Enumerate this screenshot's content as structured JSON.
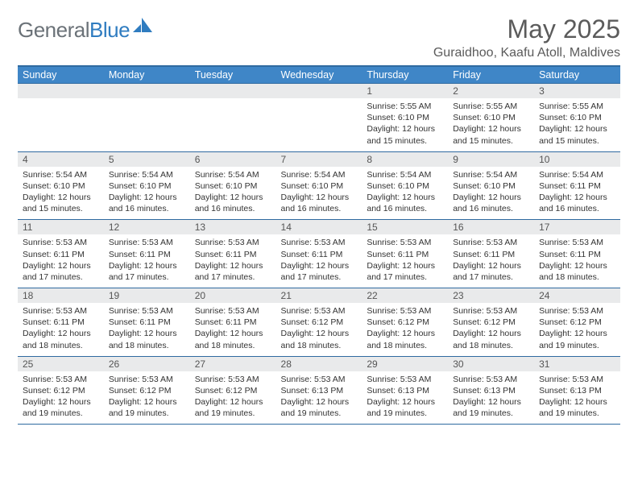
{
  "logo": {
    "word1": "General",
    "word2": "Blue",
    "word1_color": "#6b7278",
    "word2_color": "#2f7cc0"
  },
  "title": "May 2025",
  "location": "Guraidhoo, Kaafu Atoll, Maldives",
  "colors": {
    "header_bg": "#3f86c7",
    "header_text": "#ffffff",
    "rule": "#2f6aa0",
    "daynum_bg": "#e9eaeb",
    "page_bg": "#ffffff"
  },
  "dayNames": [
    "Sunday",
    "Monday",
    "Tuesday",
    "Wednesday",
    "Thursday",
    "Friday",
    "Saturday"
  ],
  "labels": {
    "sunrise": "Sunrise: ",
    "sunset": "Sunset: ",
    "daylight": "Daylight: "
  },
  "weeks": [
    [
      null,
      null,
      null,
      null,
      {
        "n": "1",
        "sr": "5:55 AM",
        "ss": "6:10 PM",
        "dl": "12 hours and 15 minutes."
      },
      {
        "n": "2",
        "sr": "5:55 AM",
        "ss": "6:10 PM",
        "dl": "12 hours and 15 minutes."
      },
      {
        "n": "3",
        "sr": "5:55 AM",
        "ss": "6:10 PM",
        "dl": "12 hours and 15 minutes."
      }
    ],
    [
      {
        "n": "4",
        "sr": "5:54 AM",
        "ss": "6:10 PM",
        "dl": "12 hours and 15 minutes."
      },
      {
        "n": "5",
        "sr": "5:54 AM",
        "ss": "6:10 PM",
        "dl": "12 hours and 16 minutes."
      },
      {
        "n": "6",
        "sr": "5:54 AM",
        "ss": "6:10 PM",
        "dl": "12 hours and 16 minutes."
      },
      {
        "n": "7",
        "sr": "5:54 AM",
        "ss": "6:10 PM",
        "dl": "12 hours and 16 minutes."
      },
      {
        "n": "8",
        "sr": "5:54 AM",
        "ss": "6:10 PM",
        "dl": "12 hours and 16 minutes."
      },
      {
        "n": "9",
        "sr": "5:54 AM",
        "ss": "6:10 PM",
        "dl": "12 hours and 16 minutes."
      },
      {
        "n": "10",
        "sr": "5:54 AM",
        "ss": "6:11 PM",
        "dl": "12 hours and 16 minutes."
      }
    ],
    [
      {
        "n": "11",
        "sr": "5:53 AM",
        "ss": "6:11 PM",
        "dl": "12 hours and 17 minutes."
      },
      {
        "n": "12",
        "sr": "5:53 AM",
        "ss": "6:11 PM",
        "dl": "12 hours and 17 minutes."
      },
      {
        "n": "13",
        "sr": "5:53 AM",
        "ss": "6:11 PM",
        "dl": "12 hours and 17 minutes."
      },
      {
        "n": "14",
        "sr": "5:53 AM",
        "ss": "6:11 PM",
        "dl": "12 hours and 17 minutes."
      },
      {
        "n": "15",
        "sr": "5:53 AM",
        "ss": "6:11 PM",
        "dl": "12 hours and 17 minutes."
      },
      {
        "n": "16",
        "sr": "5:53 AM",
        "ss": "6:11 PM",
        "dl": "12 hours and 17 minutes."
      },
      {
        "n": "17",
        "sr": "5:53 AM",
        "ss": "6:11 PM",
        "dl": "12 hours and 18 minutes."
      }
    ],
    [
      {
        "n": "18",
        "sr": "5:53 AM",
        "ss": "6:11 PM",
        "dl": "12 hours and 18 minutes."
      },
      {
        "n": "19",
        "sr": "5:53 AM",
        "ss": "6:11 PM",
        "dl": "12 hours and 18 minutes."
      },
      {
        "n": "20",
        "sr": "5:53 AM",
        "ss": "6:11 PM",
        "dl": "12 hours and 18 minutes."
      },
      {
        "n": "21",
        "sr": "5:53 AM",
        "ss": "6:12 PM",
        "dl": "12 hours and 18 minutes."
      },
      {
        "n": "22",
        "sr": "5:53 AM",
        "ss": "6:12 PM",
        "dl": "12 hours and 18 minutes."
      },
      {
        "n": "23",
        "sr": "5:53 AM",
        "ss": "6:12 PM",
        "dl": "12 hours and 18 minutes."
      },
      {
        "n": "24",
        "sr": "5:53 AM",
        "ss": "6:12 PM",
        "dl": "12 hours and 19 minutes."
      }
    ],
    [
      {
        "n": "25",
        "sr": "5:53 AM",
        "ss": "6:12 PM",
        "dl": "12 hours and 19 minutes."
      },
      {
        "n": "26",
        "sr": "5:53 AM",
        "ss": "6:12 PM",
        "dl": "12 hours and 19 minutes."
      },
      {
        "n": "27",
        "sr": "5:53 AM",
        "ss": "6:12 PM",
        "dl": "12 hours and 19 minutes."
      },
      {
        "n": "28",
        "sr": "5:53 AM",
        "ss": "6:13 PM",
        "dl": "12 hours and 19 minutes."
      },
      {
        "n": "29",
        "sr": "5:53 AM",
        "ss": "6:13 PM",
        "dl": "12 hours and 19 minutes."
      },
      {
        "n": "30",
        "sr": "5:53 AM",
        "ss": "6:13 PM",
        "dl": "12 hours and 19 minutes."
      },
      {
        "n": "31",
        "sr": "5:53 AM",
        "ss": "6:13 PM",
        "dl": "12 hours and 19 minutes."
      }
    ]
  ]
}
